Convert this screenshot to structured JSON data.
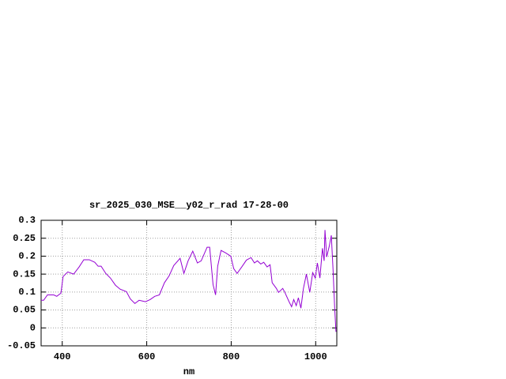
{
  "chart_data": {
    "type": "line",
    "title": "sr_2025_030_MSE__y02_r_rad 17-28-00",
    "x_label": "nm",
    "color": "#9400d3",
    "grid": true,
    "xlim": [
      350,
      1050
    ],
    "xticks": [
      400,
      600,
      800,
      1000
    ],
    "ylim": [
      -0.05,
      0.3
    ],
    "yticks": [
      -0.05,
      0,
      0.05,
      0.1,
      0.15,
      0.2,
      0.25,
      0.3
    ],
    "x": [
      350,
      356,
      365,
      380,
      387,
      397,
      402,
      413,
      427,
      440,
      451,
      464,
      477,
      485,
      492,
      503,
      514,
      526,
      537,
      552,
      561,
      572,
      582,
      597,
      608,
      619,
      630,
      642,
      653,
      664,
      679,
      688,
      698,
      709,
      720,
      729,
      743,
      749,
      757,
      763,
      768,
      776,
      787,
      799,
      806,
      814,
      825,
      836,
      847,
      855,
      862,
      870,
      877,
      885,
      892,
      897,
      907,
      912,
      922,
      927,
      937,
      943,
      948,
      954,
      959,
      965,
      971,
      978,
      986,
      993,
      999,
      1004,
      1010,
      1016,
      1020,
      1022,
      1026,
      1032,
      1037,
      1041,
      1045,
      1048
    ],
    "values": [
      0.077,
      0.077,
      0.092,
      0.092,
      0.088,
      0.097,
      0.143,
      0.156,
      0.15,
      0.17,
      0.19,
      0.19,
      0.183,
      0.172,
      0.172,
      0.152,
      0.139,
      0.119,
      0.108,
      0.101,
      0.081,
      0.068,
      0.077,
      0.073,
      0.079,
      0.088,
      0.092,
      0.126,
      0.145,
      0.174,
      0.194,
      0.152,
      0.187,
      0.214,
      0.181,
      0.187,
      0.225,
      0.225,
      0.121,
      0.092,
      0.172,
      0.216,
      0.209,
      0.2,
      0.165,
      0.152,
      0.17,
      0.189,
      0.196,
      0.181,
      0.187,
      0.178,
      0.183,
      0.17,
      0.176,
      0.126,
      0.11,
      0.099,
      0.11,
      0.099,
      0.073,
      0.059,
      0.079,
      0.062,
      0.084,
      0.055,
      0.11,
      0.15,
      0.099,
      0.154,
      0.139,
      0.181,
      0.139,
      0.222,
      0.187,
      0.273,
      0.198,
      0.227,
      0.258,
      0.165,
      0.055,
      -0.011
    ]
  }
}
